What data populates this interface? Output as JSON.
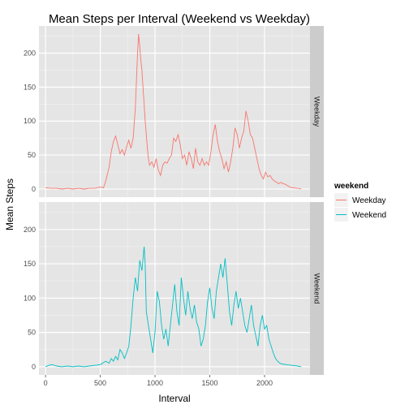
{
  "chart_data": {
    "type": "line",
    "title": "Mean Steps per Interval (Weekend vs Weekday)",
    "xlabel": "Interval",
    "ylabel": "Mean Steps",
    "xlim": [
      -60,
      2415
    ],
    "ylim": [
      -12,
      240
    ],
    "x_ticks": [
      0,
      500,
      1000,
      1500,
      2000
    ],
    "y_ticks": [
      0,
      50,
      100,
      150,
      200
    ],
    "grid": true,
    "legend": {
      "title": "weekend",
      "position": "right",
      "entries": [
        {
          "label": "Weekday",
          "color": "#F8766D"
        },
        {
          "label": "Weekend",
          "color": "#00BFC4"
        }
      ]
    },
    "panels": [
      {
        "strip": "Weekday",
        "color": "#F8766D",
        "points": [
          [
            0,
            2
          ],
          [
            50,
            1
          ],
          [
            100,
            1
          ],
          [
            150,
            0
          ],
          [
            200,
            1
          ],
          [
            250,
            0
          ],
          [
            300,
            1
          ],
          [
            350,
            0
          ],
          [
            400,
            1
          ],
          [
            450,
            1
          ],
          [
            500,
            3
          ],
          [
            530,
            2
          ],
          [
            550,
            12
          ],
          [
            580,
            32
          ],
          [
            600,
            55
          ],
          [
            620,
            70
          ],
          [
            640,
            78
          ],
          [
            660,
            65
          ],
          [
            680,
            52
          ],
          [
            700,
            58
          ],
          [
            720,
            50
          ],
          [
            740,
            62
          ],
          [
            760,
            72
          ],
          [
            780,
            60
          ],
          [
            800,
            75
          ],
          [
            820,
            120
          ],
          [
            840,
            200
          ],
          [
            850,
            228
          ],
          [
            860,
            210
          ],
          [
            870,
            190
          ],
          [
            880,
            175
          ],
          [
            890,
            150
          ],
          [
            900,
            125
          ],
          [
            910,
            100
          ],
          [
            920,
            80
          ],
          [
            930,
            60
          ],
          [
            940,
            45
          ],
          [
            950,
            35
          ],
          [
            970,
            40
          ],
          [
            990,
            32
          ],
          [
            1010,
            45
          ],
          [
            1030,
            28
          ],
          [
            1050,
            20
          ],
          [
            1070,
            35
          ],
          [
            1090,
            40
          ],
          [
            1110,
            38
          ],
          [
            1130,
            45
          ],
          [
            1150,
            50
          ],
          [
            1170,
            75
          ],
          [
            1190,
            70
          ],
          [
            1210,
            80
          ],
          [
            1230,
            65
          ],
          [
            1250,
            45
          ],
          [
            1270,
            50
          ],
          [
            1290,
            35
          ],
          [
            1310,
            55
          ],
          [
            1330,
            45
          ],
          [
            1350,
            30
          ],
          [
            1370,
            60
          ],
          [
            1390,
            40
          ],
          [
            1410,
            35
          ],
          [
            1430,
            45
          ],
          [
            1450,
            35
          ],
          [
            1470,
            40
          ],
          [
            1490,
            35
          ],
          [
            1510,
            55
          ],
          [
            1530,
            80
          ],
          [
            1550,
            95
          ],
          [
            1570,
            70
          ],
          [
            1590,
            55
          ],
          [
            1610,
            45
          ],
          [
            1630,
            30
          ],
          [
            1650,
            40
          ],
          [
            1670,
            25
          ],
          [
            1690,
            40
          ],
          [
            1710,
            60
          ],
          [
            1730,
            90
          ],
          [
            1750,
            80
          ],
          [
            1770,
            60
          ],
          [
            1790,
            75
          ],
          [
            1810,
            85
          ],
          [
            1830,
            115
          ],
          [
            1850,
            100
          ],
          [
            1870,
            80
          ],
          [
            1890,
            75
          ],
          [
            1910,
            60
          ],
          [
            1930,
            45
          ],
          [
            1950,
            30
          ],
          [
            1970,
            20
          ],
          [
            1990,
            15
          ],
          [
            2010,
            25
          ],
          [
            2030,
            18
          ],
          [
            2050,
            20
          ],
          [
            2070,
            15
          ],
          [
            2090,
            12
          ],
          [
            2110,
            10
          ],
          [
            2130,
            8
          ],
          [
            2150,
            10
          ],
          [
            2170,
            8
          ],
          [
            2190,
            7
          ],
          [
            2210,
            5
          ],
          [
            2230,
            3
          ],
          [
            2250,
            2
          ],
          [
            2270,
            2
          ],
          [
            2290,
            1
          ],
          [
            2310,
            1
          ],
          [
            2335,
            0
          ]
        ]
      },
      {
        "strip": "Weekend",
        "color": "#00BFC4",
        "points": [
          [
            0,
            0
          ],
          [
            30,
            2
          ],
          [
            60,
            3
          ],
          [
            100,
            1
          ],
          [
            150,
            0
          ],
          [
            200,
            1
          ],
          [
            250,
            0
          ],
          [
            300,
            1
          ],
          [
            350,
            0
          ],
          [
            400,
            1
          ],
          [
            450,
            2
          ],
          [
            500,
            3
          ],
          [
            550,
            8
          ],
          [
            580,
            5
          ],
          [
            600,
            12
          ],
          [
            620,
            8
          ],
          [
            640,
            15
          ],
          [
            660,
            10
          ],
          [
            680,
            25
          ],
          [
            700,
            20
          ],
          [
            720,
            12
          ],
          [
            740,
            20
          ],
          [
            760,
            30
          ],
          [
            780,
            60
          ],
          [
            800,
            100
          ],
          [
            820,
            130
          ],
          [
            840,
            110
          ],
          [
            860,
            155
          ],
          [
            880,
            140
          ],
          [
            900,
            175
          ],
          [
            910,
            150
          ],
          [
            920,
            80
          ],
          [
            940,
            60
          ],
          [
            960,
            40
          ],
          [
            980,
            20
          ],
          [
            1000,
            50
          ],
          [
            1020,
            110
          ],
          [
            1040,
            95
          ],
          [
            1060,
            60
          ],
          [
            1080,
            40
          ],
          [
            1100,
            55
          ],
          [
            1120,
            30
          ],
          [
            1140,
            60
          ],
          [
            1160,
            90
          ],
          [
            1180,
            120
          ],
          [
            1200,
            80
          ],
          [
            1220,
            60
          ],
          [
            1240,
            130
          ],
          [
            1260,
            100
          ],
          [
            1280,
            75
          ],
          [
            1300,
            110
          ],
          [
            1320,
            85
          ],
          [
            1340,
            70
          ],
          [
            1360,
            90
          ],
          [
            1380,
            65
          ],
          [
            1400,
            55
          ],
          [
            1420,
            30
          ],
          [
            1440,
            40
          ],
          [
            1460,
            60
          ],
          [
            1480,
            95
          ],
          [
            1500,
            115
          ],
          [
            1520,
            85
          ],
          [
            1540,
            70
          ],
          [
            1560,
            110
          ],
          [
            1580,
            130
          ],
          [
            1600,
            150
          ],
          [
            1620,
            130
          ],
          [
            1640,
            158
          ],
          [
            1660,
            120
          ],
          [
            1680,
            80
          ],
          [
            1700,
            60
          ],
          [
            1720,
            90
          ],
          [
            1740,
            110
          ],
          [
            1760,
            85
          ],
          [
            1780,
            100
          ],
          [
            1800,
            80
          ],
          [
            1820,
            60
          ],
          [
            1840,
            50
          ],
          [
            1860,
            70
          ],
          [
            1880,
            90
          ],
          [
            1900,
            60
          ],
          [
            1920,
            45
          ],
          [
            1940,
            30
          ],
          [
            1960,
            60
          ],
          [
            1980,
            75
          ],
          [
            2000,
            55
          ],
          [
            2020,
            60
          ],
          [
            2040,
            40
          ],
          [
            2060,
            30
          ],
          [
            2080,
            20
          ],
          [
            2100,
            12
          ],
          [
            2120,
            8
          ],
          [
            2140,
            5
          ],
          [
            2160,
            4
          ],
          [
            2200,
            3
          ],
          [
            2250,
            2
          ],
          [
            2300,
            1
          ],
          [
            2335,
            0
          ]
        ]
      }
    ]
  }
}
